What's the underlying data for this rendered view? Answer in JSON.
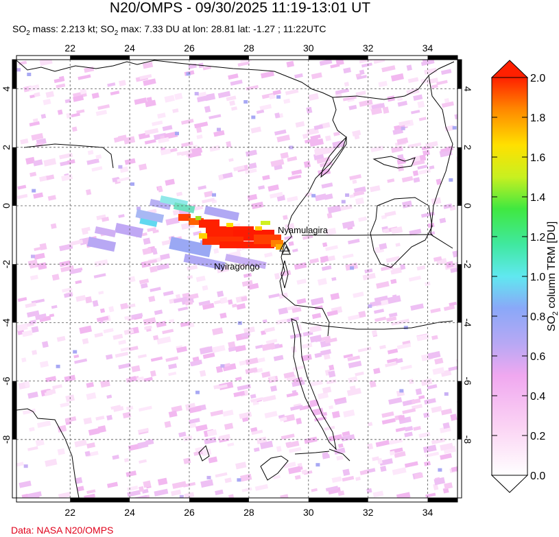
{
  "header": {
    "title": "N20/OMPS - 09/30/2025 11:19-13:01 UT",
    "subtitle_parts": [
      "SO",
      "2",
      " mass: 2.213 kt; SO",
      "2",
      " max: 7.33 DU at lon: 28.81 lat: -1.27 ; 11:22UTC"
    ]
  },
  "map": {
    "lon_range": [
      20.2,
      35.0
    ],
    "lat_range": [
      -10.0,
      5.0
    ],
    "lon_ticks": [
      "22",
      "24",
      "26",
      "28",
      "30",
      "32",
      "34"
    ],
    "lat_ticks": [
      "4",
      "2",
      "0",
      "-2",
      "-4",
      "-6",
      "-8"
    ],
    "volcanoes": [
      {
        "name": "Nyamulagira",
        "lon": 29.2,
        "lat": -1.41
      },
      {
        "name": "Nyiragongo",
        "lon": 29.25,
        "lat": -1.52
      }
    ]
  },
  "colorbar": {
    "min": 0.0,
    "max": 2.0,
    "tick_labels": [
      "0.0",
      "0.2",
      "0.4",
      "0.6",
      "0.8",
      "1.0",
      "1.2",
      "1.4",
      "1.6",
      "1.8",
      "2.0"
    ],
    "label_parts": [
      "SO",
      "2",
      " column TRM [DU]"
    ]
  },
  "footer": {
    "credit": "Data: NASA N20/OMPS"
  }
}
